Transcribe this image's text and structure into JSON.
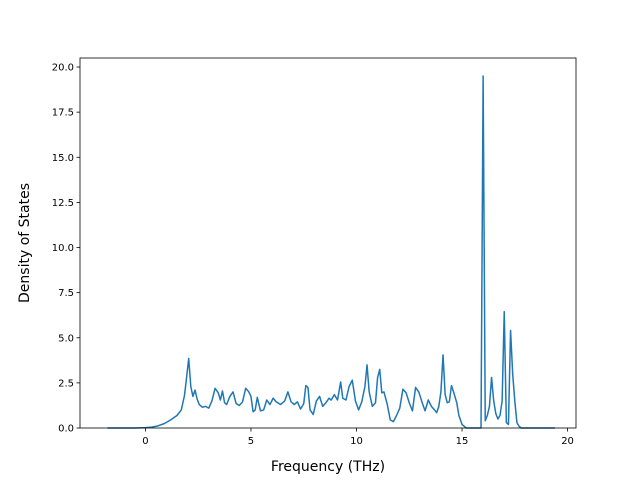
{
  "chart_data": {
    "type": "line",
    "title": "",
    "xlabel": "Frequency (THz)",
    "ylabel": "Density of States",
    "xlim": [
      -3.1,
      20.4
    ],
    "ylim": [
      0,
      20.5
    ],
    "x_ticks": [
      0,
      5,
      10,
      15,
      20
    ],
    "x_tick_labels": [
      "0",
      "5",
      "10",
      "15",
      "20"
    ],
    "y_ticks": [
      0,
      2.5,
      5,
      7.5,
      10,
      12.5,
      15,
      17.5,
      20
    ],
    "y_tick_labels": [
      "0.0",
      "2.5",
      "5.0",
      "7.5",
      "10.0",
      "12.5",
      "15.0",
      "17.5",
      "20.0"
    ],
    "grid": false,
    "legend": "none",
    "series": [
      {
        "color": "#1f77b4",
        "x": [
          -1.8,
          -1.0,
          -0.5,
          0.0,
          0.3,
          0.6,
          0.9,
          1.2,
          1.5,
          1.7,
          1.85,
          1.95,
          2.05,
          2.15,
          2.25,
          2.35,
          2.45,
          2.55,
          2.7,
          2.85,
          3.0,
          3.15,
          3.3,
          3.45,
          3.55,
          3.65,
          3.75,
          3.85,
          4.0,
          4.15,
          4.3,
          4.45,
          4.6,
          4.75,
          4.9,
          5.0,
          5.1,
          5.2,
          5.3,
          5.45,
          5.6,
          5.75,
          5.9,
          6.05,
          6.2,
          6.4,
          6.6,
          6.75,
          6.9,
          7.05,
          7.2,
          7.35,
          7.5,
          7.6,
          7.7,
          7.8,
          7.95,
          8.1,
          8.25,
          8.4,
          8.55,
          8.7,
          8.8,
          8.95,
          9.1,
          9.25,
          9.35,
          9.5,
          9.65,
          9.8,
          9.95,
          10.1,
          10.25,
          10.4,
          10.5,
          10.6,
          10.75,
          10.9,
          11.0,
          11.1,
          11.2,
          11.3,
          11.45,
          11.6,
          11.75,
          11.9,
          12.05,
          12.2,
          12.35,
          12.5,
          12.65,
          12.8,
          12.95,
          13.1,
          13.25,
          13.4,
          13.55,
          13.7,
          13.8,
          13.9,
          14.0,
          14.1,
          14.2,
          14.3,
          14.4,
          14.5,
          14.6,
          14.75,
          14.85,
          15.0,
          15.2,
          15.4,
          15.6,
          15.8,
          15.9,
          16.0,
          16.1,
          16.2,
          16.3,
          16.4,
          16.5,
          16.6,
          16.7,
          16.8,
          16.9,
          17.0,
          17.1,
          17.2,
          17.3,
          17.4,
          17.5,
          17.6,
          17.7,
          17.8,
          18.0,
          18.5,
          19.0,
          19.4
        ],
        "y": [
          0.0,
          0.0,
          0.0,
          0.02,
          0.05,
          0.12,
          0.25,
          0.45,
          0.7,
          1.0,
          1.8,
          2.8,
          3.85,
          2.3,
          1.75,
          2.1,
          1.6,
          1.3,
          1.15,
          1.2,
          1.1,
          1.5,
          2.2,
          1.95,
          1.55,
          2.05,
          1.4,
          1.3,
          1.75,
          2.0,
          1.35,
          1.25,
          1.45,
          2.2,
          2.0,
          1.75,
          0.9,
          1.0,
          1.7,
          0.95,
          1.0,
          1.55,
          1.3,
          1.65,
          1.45,
          1.3,
          1.5,
          2.0,
          1.45,
          1.3,
          1.45,
          1.05,
          1.35,
          2.35,
          2.25,
          1.0,
          0.75,
          1.5,
          1.75,
          1.2,
          1.4,
          1.65,
          1.55,
          1.85,
          1.55,
          2.55,
          1.65,
          1.55,
          2.3,
          2.65,
          1.5,
          1.0,
          1.45,
          2.3,
          3.5,
          2.0,
          1.2,
          1.4,
          2.8,
          3.25,
          1.95,
          2.0,
          1.35,
          0.45,
          0.35,
          0.7,
          1.1,
          2.15,
          1.95,
          1.4,
          0.95,
          2.25,
          2.0,
          1.45,
          0.95,
          1.55,
          1.2,
          1.0,
          0.85,
          1.2,
          2.0,
          4.05,
          1.85,
          1.4,
          1.45,
          2.35,
          2.0,
          1.4,
          0.7,
          0.2,
          0.0,
          0.0,
          0.0,
          0.0,
          0.0,
          19.5,
          0.4,
          0.7,
          1.2,
          2.8,
          1.5,
          0.8,
          0.5,
          0.7,
          1.5,
          6.45,
          0.3,
          0.2,
          5.4,
          3.0,
          1.5,
          0.3,
          0.1,
          0.0,
          0.0,
          0.0,
          0.0,
          0.0
        ]
      }
    ]
  }
}
